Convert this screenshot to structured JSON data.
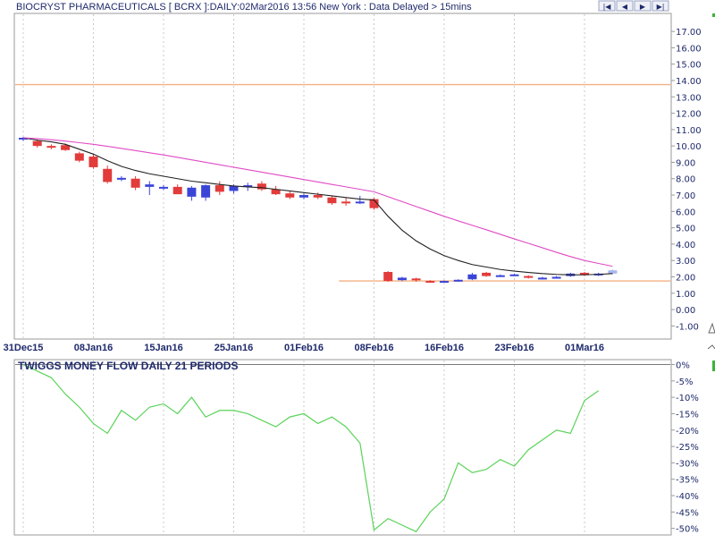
{
  "header": {
    "title": "BIOCRYST PHARMACEUTICALS [ BCRX ]:DAILY:02Mar2016 13:56 New York : Data Delayed > 15mins",
    "nav_buttons": [
      {
        "name": "first-page-button",
        "icon": "skip-back-icon",
        "glyph": "|◀"
      },
      {
        "name": "prev-page-button",
        "icon": "arrow-left-icon",
        "glyph": "◀"
      },
      {
        "name": "next-page-button",
        "icon": "arrow-right-icon",
        "glyph": "▶"
      },
      {
        "name": "last-page-button",
        "icon": "skip-forward-icon",
        "glyph": "▶|"
      }
    ]
  },
  "chart_data": [
    {
      "type": "candlestick",
      "title": "BIOCRYST PHARMACEUTICALS [ BCRX ]:DAILY:02Mar2016 13:56 New York : Data Delayed > 15mins",
      "ylim": [
        -1.8,
        18.1
      ],
      "yticks": [
        "17.00",
        "16.00",
        "15.00",
        "14.00",
        "13.00",
        "12.00",
        "11.00",
        "10.00",
        "9.00",
        "8.00",
        "7.00",
        "6.00",
        "5.00",
        "4.00",
        "3.00",
        "2.00",
        "1.00",
        "0.00",
        "-1.00"
      ],
      "ytick_values": [
        17,
        16,
        15,
        14,
        13,
        12,
        11,
        10,
        9,
        8,
        7,
        6,
        5,
        4,
        3,
        2,
        1,
        0,
        -1
      ],
      "xticks": [
        {
          "label": "31Dec15",
          "index": 0
        },
        {
          "label": "08Jan16",
          "index": 5
        },
        {
          "label": "15Jan16",
          "index": 10
        },
        {
          "label": "25Jan16",
          "index": 15
        },
        {
          "label": "01Feb16",
          "index": 20
        },
        {
          "label": "08Feb16",
          "index": 25
        },
        {
          "label": "16Feb16",
          "index": 30
        },
        {
          "label": "23Feb16",
          "index": 35
        },
        {
          "label": "01Mar16",
          "index": 40
        }
      ],
      "horizontal_lines": [
        {
          "value": 13.75,
          "color": "#f4b183",
          "from_index": -1
        },
        {
          "value": 1.75,
          "color": "#f4b183",
          "from_index": 22.5
        }
      ],
      "candles": [
        {
          "d": "31Dec15",
          "o": 10.4,
          "h": 10.55,
          "l": 10.3,
          "c": 10.5
        },
        {
          "d": "04Jan16",
          "o": 10.3,
          "h": 10.4,
          "l": 9.9,
          "c": 10.0
        },
        {
          "d": "05Jan16",
          "o": 10.0,
          "h": 10.1,
          "l": 9.8,
          "c": 9.95
        },
        {
          "d": "06Jan16",
          "o": 10.05,
          "h": 10.15,
          "l": 9.7,
          "c": 9.75
        },
        {
          "d": "07Jan16",
          "o": 9.55,
          "h": 9.65,
          "l": 9.0,
          "c": 9.1
        },
        {
          "d": "08Jan16",
          "o": 9.35,
          "h": 9.5,
          "l": 8.6,
          "c": 8.7
        },
        {
          "d": "11Jan16",
          "o": 8.6,
          "h": 8.8,
          "l": 7.7,
          "c": 7.8
        },
        {
          "d": "12Jan16",
          "o": 7.95,
          "h": 8.15,
          "l": 7.85,
          "c": 8.05
        },
        {
          "d": "13Jan16",
          "o": 8.0,
          "h": 8.15,
          "l": 7.3,
          "c": 7.45
        },
        {
          "d": "14Jan16",
          "o": 7.5,
          "h": 7.85,
          "l": 7.0,
          "c": 7.65
        },
        {
          "d": "15Jan16",
          "o": 7.4,
          "h": 7.6,
          "l": 7.3,
          "c": 7.5
        },
        {
          "d": "19Jan16",
          "o": 7.5,
          "h": 7.65,
          "l": 7.05,
          "c": 7.05
        },
        {
          "d": "20Jan16",
          "o": 6.9,
          "h": 7.55,
          "l": 6.65,
          "c": 7.45
        },
        {
          "d": "21Jan16",
          "o": 6.85,
          "h": 7.65,
          "l": 6.65,
          "c": 7.6
        },
        {
          "d": "22Jan16",
          "o": 7.6,
          "h": 7.85,
          "l": 7.0,
          "c": 7.2
        },
        {
          "d": "25Jan16",
          "o": 7.25,
          "h": 7.65,
          "l": 7.1,
          "c": 7.55
        },
        {
          "d": "26Jan16",
          "o": 7.5,
          "h": 7.75,
          "l": 7.25,
          "c": 7.6
        },
        {
          "d": "27Jan16",
          "o": 7.7,
          "h": 7.85,
          "l": 7.25,
          "c": 7.35
        },
        {
          "d": "28Jan16",
          "o": 7.35,
          "h": 7.55,
          "l": 7.0,
          "c": 7.05
        },
        {
          "d": "29Jan16",
          "o": 7.1,
          "h": 7.25,
          "l": 6.75,
          "c": 6.85
        },
        {
          "d": "01Feb16",
          "o": 6.85,
          "h": 7.1,
          "l": 6.75,
          "c": 7.0
        },
        {
          "d": "02Feb16",
          "o": 7.0,
          "h": 7.15,
          "l": 6.75,
          "c": 6.85
        },
        {
          "d": "03Feb16",
          "o": 6.85,
          "h": 6.95,
          "l": 6.4,
          "c": 6.5
        },
        {
          "d": "04Feb16",
          "o": 6.6,
          "h": 6.85,
          "l": 6.35,
          "c": 6.55
        },
        {
          "d": "05Feb16",
          "o": 6.55,
          "h": 6.95,
          "l": 6.45,
          "c": 6.6
        },
        {
          "d": "08Feb16",
          "o": 6.75,
          "h": 6.85,
          "l": 6.1,
          "c": 6.2
        },
        {
          "d": "09Feb16",
          "o": 2.3,
          "h": 2.35,
          "l": 1.7,
          "c": 1.75
        },
        {
          "d": "10Feb16",
          "o": 1.8,
          "h": 2.0,
          "l": 1.75,
          "c": 1.95
        },
        {
          "d": "11Feb16",
          "o": 1.9,
          "h": 1.95,
          "l": 1.7,
          "c": 1.8
        },
        {
          "d": "12Feb16",
          "o": 1.75,
          "h": 1.8,
          "l": 1.68,
          "c": 1.72
        },
        {
          "d": "16Feb16",
          "o": 1.72,
          "h": 1.78,
          "l": 1.65,
          "c": 1.75
        },
        {
          "d": "17Feb16",
          "o": 1.75,
          "h": 1.85,
          "l": 1.7,
          "c": 1.82
        },
        {
          "d": "18Feb16",
          "o": 1.85,
          "h": 2.25,
          "l": 1.8,
          "c": 2.15
        },
        {
          "d": "19Feb16",
          "o": 2.25,
          "h": 2.3,
          "l": 2.0,
          "c": 2.05
        },
        {
          "d": "22Feb16",
          "o": 2.05,
          "h": 2.15,
          "l": 2.0,
          "c": 2.1
        },
        {
          "d": "23Feb16",
          "o": 2.1,
          "h": 2.2,
          "l": 2.05,
          "c": 2.15
        },
        {
          "d": "24Feb16",
          "o": 2.05,
          "h": 2.1,
          "l": 1.9,
          "c": 1.95
        },
        {
          "d": "25Feb16",
          "o": 1.9,
          "h": 2.0,
          "l": 1.85,
          "c": 1.95
        },
        {
          "d": "26Feb16",
          "o": 1.95,
          "h": 2.05,
          "l": 1.9,
          "c": 2.0
        },
        {
          "d": "29Feb16",
          "o": 2.05,
          "h": 2.25,
          "l": 2.0,
          "c": 2.2
        },
        {
          "d": "01Mar16",
          "o": 2.25,
          "h": 2.3,
          "l": 2.05,
          "c": 2.1
        },
        {
          "d": "02Mar16",
          "o": 2.1,
          "h": 2.25,
          "l": 2.05,
          "c": 2.2
        },
        {
          "d": "02Mar16b",
          "o": 2.2,
          "h": 2.45,
          "l": 2.15,
          "c": 2.4
        }
      ],
      "candle_colors": {
        "up": "#3a45d8",
        "down": "#e23b3b",
        "last": "#a9b7ee"
      },
      "series": [
        {
          "values": [
            10.5,
            10.35,
            10.25,
            10.1,
            9.8,
            9.5,
            9.1,
            8.75,
            8.5,
            8.3,
            8.15,
            8.0,
            7.85,
            7.75,
            7.65,
            7.55,
            7.5,
            7.45,
            7.35,
            7.25,
            7.15,
            7.05,
            6.95,
            6.85,
            6.75,
            6.7,
            5.7,
            4.85,
            4.2,
            3.7,
            3.3,
            3.0,
            2.75,
            2.6,
            2.45,
            2.35,
            2.27,
            2.2,
            2.15,
            2.12,
            2.13,
            2.15,
            2.2
          ],
          "color": "#222222"
        },
        {
          "values": [
            10.5,
            10.45,
            10.38,
            10.3,
            10.2,
            10.1,
            9.98,
            9.85,
            9.72,
            9.58,
            9.45,
            9.3,
            9.15,
            9.0,
            8.85,
            8.7,
            8.55,
            8.4,
            8.25,
            8.1,
            7.95,
            7.8,
            7.65,
            7.5,
            7.35,
            7.2,
            6.9,
            6.6,
            6.3,
            6.0,
            5.7,
            5.42,
            5.15,
            4.88,
            4.6,
            4.32,
            4.05,
            3.78,
            3.5,
            3.24,
            3.0,
            2.82,
            2.65
          ],
          "color": "#e04bc6"
        }
      ]
    },
    {
      "type": "line",
      "title": "TWIGGS MONEY FLOW DAILY 21 PERIODS",
      "ylim": [
        -52,
        1.5
      ],
      "yticks": [
        "0%",
        "-5%",
        "-10%",
        "-15%",
        "-20%",
        "-25%",
        "-30%",
        "-35%",
        "-40%",
        "-45%",
        "-50%"
      ],
      "ytick_values": [
        0,
        -5,
        -10,
        -15,
        -20,
        -25,
        -30,
        -35,
        -40,
        -45,
        -50
      ],
      "series": [
        {
          "values": [
            0,
            -2,
            -4,
            -9,
            -13,
            -18,
            -21,
            -14,
            -17,
            -13,
            -12,
            -15,
            -10,
            -16,
            -14,
            -14,
            -15,
            -17,
            -19,
            -16,
            -15,
            -18,
            -16,
            -19,
            -24,
            -50.5,
            -47,
            -49,
            -51,
            -45,
            -41,
            -30,
            -33,
            -32,
            -29,
            -31,
            -26,
            -23,
            -20,
            -21,
            -11,
            -8
          ],
          "color": "#5ad35a"
        }
      ]
    }
  ]
}
